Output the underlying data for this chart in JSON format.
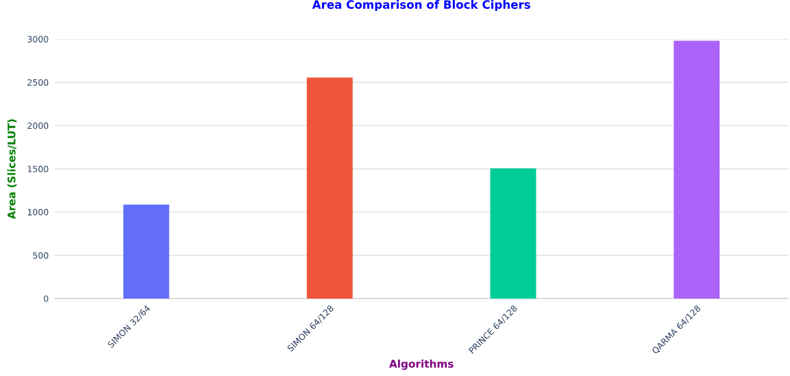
{
  "chart_data": {
    "type": "bar",
    "title": "Area Comparison of Block Ciphers",
    "xlabel": "Algorithms",
    "ylabel": "Area (Slices/LUT)",
    "categories": [
      "SIMON 32/64",
      "SIMON 64/128",
      "PRINCE 64/128",
      "QARMA 64/128"
    ],
    "values": [
      1087,
      2555,
      1505,
      2980
    ],
    "colors": [
      "#636efa",
      "#ef553b",
      "#00cc96",
      "#ab63fa"
    ],
    "ylim": [
      0,
      3000
    ],
    "yticks": [
      0,
      500,
      1000,
      1500,
      2000,
      2500,
      3000
    ],
    "grid": "y",
    "legend": false
  }
}
